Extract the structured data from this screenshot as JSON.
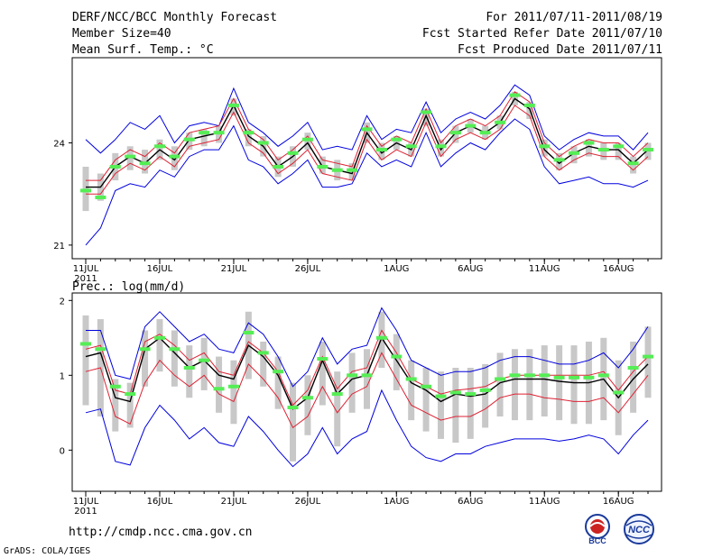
{
  "header": {
    "title": "DERF/NCC/BCC Monthly Forecast",
    "member_size": "Member Size=40",
    "variable": "Mean Surf. Temp.: °C",
    "period": "For 2011/07/11-2011/08/19",
    "start_date": "Fcst Started Refer Date 2011/07/10",
    "produced_date": "Fcst Produced Date 2011/07/11"
  },
  "footer": {
    "url": "http://cmdp.ncc.cma.gov.cn",
    "credit": "GrADS: COLA/IGES",
    "logo_bcc": "BCC",
    "logo_ncc": "NCC"
  },
  "colors": {
    "ensemble_mean": "#000000",
    "inner_bound": "#dd2233",
    "outer_bound": "#0000dd",
    "marker": "#55ee55",
    "spread_bar": "#c8c8c8"
  },
  "chart_data": [
    {
      "type": "line",
      "title": "Mean Surf. Temp.: °C",
      "xlabel": "",
      "ylabel": "",
      "x_tick_labels": [
        "11JUL",
        "16JUL",
        "21JUL",
        "26JUL",
        "1AUG",
        "6AUG",
        "11AUG",
        "16AUG"
      ],
      "x_tick_days": [
        0,
        5,
        10,
        15,
        21,
        26,
        31,
        36
      ],
      "x_sublabel": "2011",
      "ylim": [
        20.6,
        26.5
      ],
      "y_ticks": [
        21,
        24
      ],
      "days": 39,
      "series": [
        {
          "name": "ensemble-mean",
          "color": "#000000",
          "values": [
            22.7,
            22.7,
            23.3,
            23.6,
            23.4,
            23.8,
            23.5,
            24.1,
            24.2,
            24.3,
            25.1,
            24.2,
            23.9,
            23.3,
            23.6,
            24.0,
            23.3,
            23.2,
            23.1,
            24.3,
            23.7,
            24.0,
            23.8,
            24.8,
            23.8,
            24.3,
            24.5,
            24.3,
            24.6,
            25.3,
            25.0,
            23.8,
            23.4,
            23.7,
            23.9,
            23.8,
            23.8,
            23.4,
            23.8
          ]
        },
        {
          "name": "upper-inner",
          "color": "#dd2233",
          "values": [
            22.9,
            22.9,
            23.5,
            23.8,
            23.6,
            24.0,
            23.7,
            24.3,
            24.4,
            24.5,
            25.3,
            24.4,
            24.1,
            23.5,
            23.8,
            24.2,
            23.5,
            23.4,
            23.3,
            24.5,
            23.9,
            24.2,
            24.0,
            25.0,
            24.0,
            24.5,
            24.7,
            24.5,
            24.8,
            25.5,
            25.2,
            24.0,
            23.6,
            23.9,
            24.1,
            24.0,
            24.0,
            23.6,
            24.0
          ]
        },
        {
          "name": "lower-inner",
          "color": "#dd2233",
          "values": [
            22.5,
            22.5,
            23.1,
            23.4,
            23.2,
            23.6,
            23.3,
            23.9,
            24.0,
            24.1,
            24.9,
            24.0,
            23.7,
            23.1,
            23.4,
            23.8,
            23.1,
            23.0,
            22.9,
            24.1,
            23.5,
            23.8,
            23.6,
            24.6,
            23.6,
            24.1,
            24.3,
            24.1,
            24.4,
            25.1,
            24.8,
            23.6,
            23.2,
            23.5,
            23.7,
            23.6,
            23.6,
            23.2,
            23.6
          ]
        },
        {
          "name": "upper-outer",
          "color": "#0000dd",
          "values": [
            24.1,
            23.7,
            24.1,
            24.6,
            24.4,
            24.8,
            24.0,
            24.5,
            24.6,
            24.5,
            25.6,
            24.6,
            24.3,
            23.9,
            24.2,
            24.6,
            23.8,
            23.9,
            23.8,
            24.8,
            24.1,
            24.4,
            24.3,
            25.2,
            24.3,
            24.7,
            24.9,
            24.7,
            25.1,
            25.7,
            25.4,
            24.2,
            23.8,
            24.1,
            24.3,
            24.2,
            24.2,
            23.8,
            24.3
          ]
        },
        {
          "name": "lower-outer",
          "color": "#0000dd",
          "values": [
            21.0,
            21.5,
            22.6,
            22.8,
            22.7,
            23.2,
            23.0,
            23.6,
            23.8,
            23.8,
            24.5,
            23.5,
            23.3,
            22.8,
            23.1,
            23.5,
            22.7,
            22.7,
            22.8,
            23.7,
            23.3,
            23.5,
            23.3,
            24.3,
            23.3,
            23.7,
            24.0,
            23.8,
            24.3,
            24.7,
            24.4,
            23.3,
            22.8,
            22.9,
            23.0,
            22.8,
            22.8,
            22.7,
            22.9
          ]
        },
        {
          "name": "spread-top",
          "color": "#c8c8c8",
          "values": [
            23.3,
            23.1,
            23.7,
            23.9,
            23.8,
            24.1,
            23.9,
            24.3,
            24.4,
            24.5,
            25.3,
            24.4,
            24.2,
            23.6,
            23.9,
            24.3,
            23.6,
            23.5,
            23.4,
            24.6,
            24.0,
            24.2,
            24.0,
            25.0,
            24.1,
            24.5,
            24.7,
            24.5,
            24.8,
            25.5,
            25.2,
            24.1,
            23.7,
            23.9,
            24.1,
            24.0,
            24.0,
            23.6,
            24.0
          ]
        },
        {
          "name": "spread-bottom",
          "color": "#c8c8c8",
          "values": [
            22.0,
            22.3,
            22.9,
            23.2,
            23.1,
            23.5,
            23.2,
            23.8,
            23.9,
            24.0,
            24.8,
            23.9,
            23.6,
            23.0,
            23.3,
            23.8,
            23.1,
            22.9,
            22.9,
            24.0,
            23.5,
            23.8,
            23.6,
            24.5,
            23.6,
            24.0,
            24.3,
            24.1,
            24.4,
            25.1,
            24.7,
            23.6,
            23.2,
            23.4,
            23.6,
            23.5,
            23.5,
            23.1,
            23.5
          ]
        },
        {
          "name": "green-marker",
          "color": "#55ee55",
          "values": [
            22.6,
            22.4,
            23.3,
            23.6,
            23.4,
            23.9,
            23.6,
            24.1,
            24.3,
            24.3,
            25.1,
            24.3,
            24.0,
            23.3,
            23.7,
            24.1,
            23.3,
            23.2,
            23.2,
            24.4,
            23.8,
            24.1,
            23.9,
            24.9,
            23.9,
            24.3,
            24.5,
            24.3,
            24.6,
            25.4,
            25.1,
            23.9,
            23.5,
            23.7,
            24.0,
            23.8,
            23.9,
            23.4,
            23.8
          ]
        }
      ]
    },
    {
      "type": "line",
      "title": "Prec.: log(mm/d)",
      "xlabel": "",
      "ylabel": "",
      "x_tick_labels": [
        "11JUL",
        "16JUL",
        "21JUL",
        "26JUL",
        "1AUG",
        "6AUG",
        "11AUG",
        "16AUG"
      ],
      "x_tick_days": [
        0,
        5,
        10,
        15,
        21,
        26,
        31,
        36
      ],
      "x_sublabel": "2011",
      "ylim": [
        -0.55,
        2.1
      ],
      "y_ticks": [
        0,
        1,
        2
      ],
      "days": 39,
      "series": [
        {
          "name": "ensemble-mean",
          "color": "#000000",
          "values": [
            1.25,
            1.3,
            0.7,
            0.65,
            1.35,
            1.5,
            1.3,
            1.1,
            1.2,
            1.0,
            0.95,
            1.4,
            1.25,
            1.0,
            0.55,
            0.7,
            1.2,
            0.75,
            0.95,
            1.0,
            1.5,
            1.2,
            0.9,
            0.8,
            0.65,
            0.75,
            0.72,
            0.75,
            0.9,
            0.95,
            0.95,
            0.95,
            0.92,
            0.9,
            0.9,
            0.95,
            0.7,
            0.95,
            1.15
          ]
        },
        {
          "name": "upper-inner",
          "color": "#dd2233",
          "values": [
            1.35,
            1.4,
            0.8,
            0.75,
            1.45,
            1.55,
            1.4,
            1.2,
            1.3,
            1.05,
            1.0,
            1.45,
            1.3,
            1.05,
            0.6,
            0.8,
            1.25,
            0.82,
            1.05,
            1.1,
            1.6,
            1.3,
            0.95,
            0.85,
            0.75,
            0.8,
            0.82,
            0.85,
            0.95,
            1.0,
            1.0,
            1.0,
            1.0,
            1.0,
            1.0,
            1.05,
            0.8,
            1.05,
            1.25
          ]
        },
        {
          "name": "lower-inner",
          "color": "#dd2233",
          "values": [
            1.05,
            1.1,
            0.45,
            0.35,
            0.9,
            1.2,
            1.0,
            0.85,
            1.0,
            0.75,
            0.65,
            1.15,
            0.95,
            0.7,
            0.3,
            0.45,
            0.85,
            0.5,
            0.75,
            0.85,
            1.3,
            0.95,
            0.6,
            0.5,
            0.4,
            0.45,
            0.45,
            0.55,
            0.7,
            0.75,
            0.75,
            0.7,
            0.68,
            0.65,
            0.65,
            0.7,
            0.5,
            0.75,
            1.0
          ]
        },
        {
          "name": "upper-outer",
          "color": "#0000dd",
          "values": [
            1.6,
            1.6,
            1.0,
            0.95,
            1.65,
            1.85,
            1.65,
            1.45,
            1.55,
            1.35,
            1.3,
            1.7,
            1.55,
            1.25,
            0.85,
            1.05,
            1.5,
            1.15,
            1.35,
            1.4,
            1.9,
            1.6,
            1.2,
            1.1,
            1.0,
            1.05,
            1.05,
            1.1,
            1.2,
            1.25,
            1.25,
            1.2,
            1.15,
            1.15,
            1.2,
            1.3,
            1.1,
            1.35,
            1.65
          ]
        },
        {
          "name": "lower-outer",
          "color": "#0000dd",
          "values": [
            0.5,
            0.55,
            -0.15,
            -0.2,
            0.3,
            0.6,
            0.4,
            0.15,
            0.3,
            0.1,
            0.05,
            0.45,
            0.25,
            0.0,
            -0.22,
            -0.05,
            0.3,
            -0.05,
            0.15,
            0.25,
            0.8,
            0.4,
            0.05,
            -0.1,
            -0.15,
            -0.05,
            -0.05,
            0.05,
            0.1,
            0.15,
            0.15,
            0.15,
            0.12,
            0.15,
            0.2,
            0.15,
            -0.05,
            0.2,
            0.4
          ]
        },
        {
          "name": "spread-top",
          "color": "#c8c8c8",
          "values": [
            1.8,
            1.75,
            0.95,
            0.9,
            1.6,
            1.75,
            1.6,
            1.4,
            1.5,
            1.25,
            1.2,
            1.85,
            1.45,
            1.25,
            0.9,
            1.0,
            1.45,
            1.05,
            1.3,
            1.35,
            1.85,
            1.55,
            1.2,
            1.1,
            1.05,
            1.1,
            1.1,
            1.15,
            1.3,
            1.35,
            1.35,
            1.4,
            1.4,
            1.4,
            1.45,
            1.5,
            1.2,
            1.45,
            1.65
          ]
        },
        {
          "name": "spread-bottom",
          "color": "#c8c8c8",
          "values": [
            0.6,
            0.45,
            0.25,
            0.3,
            0.85,
            1.05,
            0.85,
            0.7,
            0.8,
            0.5,
            0.35,
            0.95,
            0.85,
            0.55,
            -0.15,
            0.2,
            0.6,
            0.05,
            0.5,
            0.55,
            1.1,
            0.8,
            0.4,
            0.25,
            0.15,
            0.1,
            0.15,
            0.3,
            0.45,
            0.4,
            0.4,
            0.45,
            0.4,
            0.35,
            0.35,
            0.4,
            0.2,
            0.5,
            0.7
          ]
        },
        {
          "name": "green-marker",
          "color": "#55ee55",
          "values": [
            1.42,
            1.35,
            0.85,
            0.75,
            1.35,
            1.5,
            1.35,
            1.1,
            1.2,
            0.82,
            0.85,
            1.57,
            1.3,
            1.05,
            0.57,
            0.7,
            1.22,
            0.75,
            1.0,
            1.0,
            1.5,
            1.25,
            0.95,
            0.85,
            0.72,
            0.77,
            0.75,
            0.8,
            0.95,
            1.0,
            1.0,
            1.0,
            0.97,
            0.97,
            0.97,
            1.0,
            0.77,
            1.1,
            1.25
          ]
        }
      ]
    }
  ]
}
